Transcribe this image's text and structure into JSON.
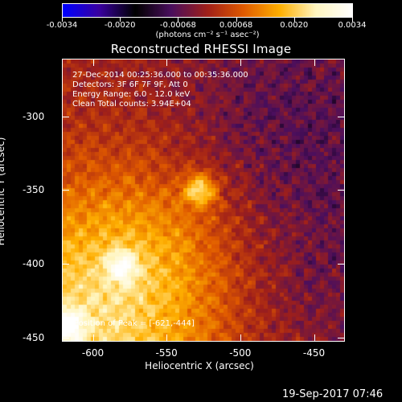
{
  "colorbar": {
    "tick_labels": [
      "-0.0034",
      "-0.0020",
      "-0.00068",
      "0.00068",
      "0.0020",
      "0.0034"
    ],
    "units": "(photons cm⁻² s⁻¹ asec⁻²)",
    "colors": [
      "#0000ff",
      "#3a00a0",
      "#000000",
      "#4b0f5e",
      "#a0201a",
      "#e05a00",
      "#ffb000",
      "#fff6c0",
      "#ffffff"
    ]
  },
  "title": "Reconstructed RHESSI Image",
  "annotations": {
    "time": "27-Dec-2014 00:25:36.000 to 00:35:36.000",
    "detectors": "Detectors: 3F 6F 7F 9F, Att 0",
    "energy": "Energy Range: 6.0 - 12.0 keV",
    "clean": "Clean     Total counts: 3.94E+04",
    "peak": "Position of Peak = [-621,-444]"
  },
  "chart_data": {
    "type": "heatmap",
    "title": "Reconstructed RHESSI Image",
    "xlabel": "Heliocentric X (arcsec)",
    "ylabel": "Heliocentric Y (arcsec)",
    "xlim": [
      -621,
      -429
    ],
    "ylim": [
      -453,
      -261
    ],
    "x_ticks": [
      "-600",
      "-550",
      "-500",
      "-450"
    ],
    "y_ticks": [
      "-300",
      "-350",
      "-400",
      "-450"
    ],
    "x_tick_values": [
      -600,
      -550,
      -500,
      -450
    ],
    "y_tick_values": [
      -300,
      -350,
      -400,
      -450
    ],
    "color_range": [
      -0.0034,
      0.0034
    ],
    "peak": [
      -621,
      -444
    ],
    "sources": [
      {
        "x": -527,
        "y": -350,
        "relative_intensity": 1.0
      },
      {
        "x": -618,
        "y": -443,
        "relative_intensity": 0.95
      },
      {
        "x": -580,
        "y": -402,
        "relative_intensity": 0.75
      }
    ]
  },
  "footer": "19-Sep-2017 07:46"
}
